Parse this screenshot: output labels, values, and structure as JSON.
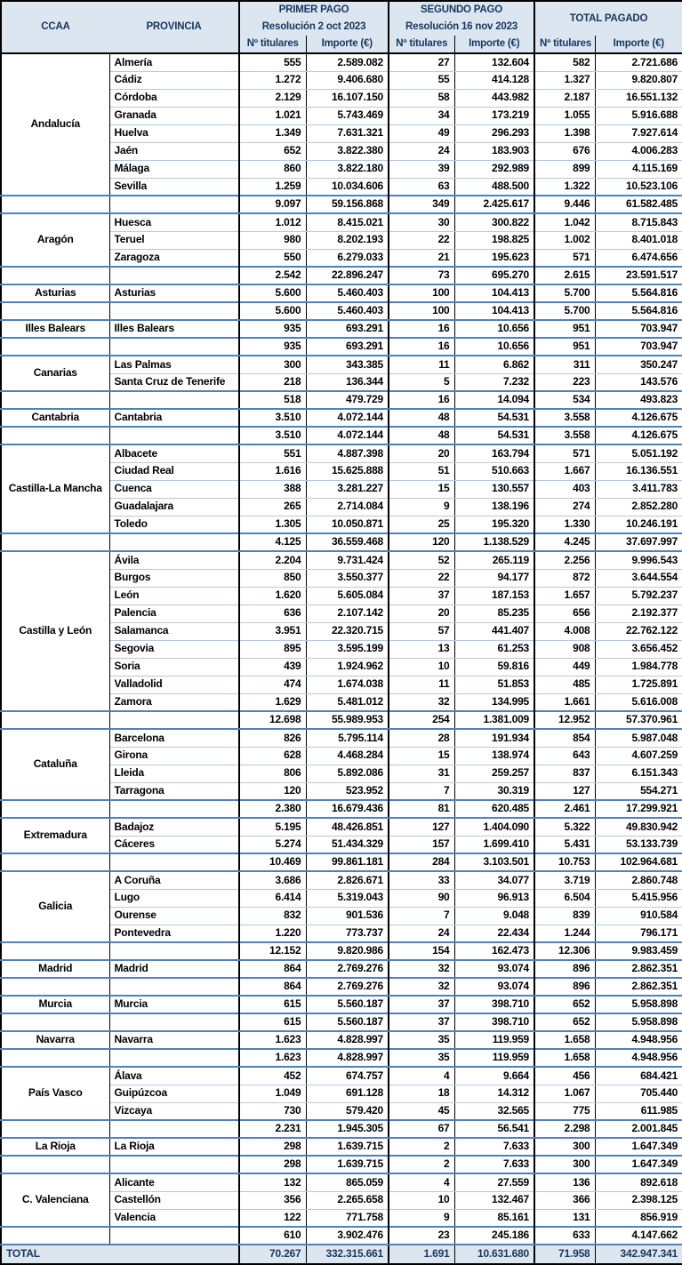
{
  "header": {
    "ccaa": "CCAA",
    "provincia": "PROVINCIA",
    "groups": [
      {
        "title": "PRIMER PAGO",
        "subtitle": "Resolución 2 oct 2023"
      },
      {
        "title": "SEGUNDO PAGO",
        "subtitle": "Resolución 16 nov 2023"
      },
      {
        "title": "TOTAL PAGADO",
        "subtitle": ""
      }
    ],
    "col_titulares": "Nº titulares",
    "col_importe": "Importe (€)"
  },
  "colors": {
    "header_bg": "#DCE6F1",
    "header_text": "#17375E",
    "group_line": "#4F81BD",
    "row_line": "#B4C9E2",
    "border": "#000000"
  },
  "regions": [
    {
      "ccaa": "Andalucía",
      "provinces": [
        {
          "name": "Almería",
          "values": [
            "555",
            "2.589.082",
            "27",
            "132.604",
            "582",
            "2.721.686"
          ]
        },
        {
          "name": "Cádiz",
          "values": [
            "1.272",
            "9.406.680",
            "55",
            "414.128",
            "1.327",
            "9.820.807"
          ]
        },
        {
          "name": "Córdoba",
          "values": [
            "2.129",
            "16.107.150",
            "58",
            "443.982",
            "2.187",
            "16.551.132"
          ]
        },
        {
          "name": "Granada",
          "values": [
            "1.021",
            "5.743.469",
            "34",
            "173.219",
            "1.055",
            "5.916.688"
          ]
        },
        {
          "name": "Huelva",
          "values": [
            "1.349",
            "7.631.321",
            "49",
            "296.293",
            "1.398",
            "7.927.614"
          ]
        },
        {
          "name": "Jaén",
          "values": [
            "652",
            "3.822.380",
            "24",
            "183.903",
            "676",
            "4.006.283"
          ]
        },
        {
          "name": "Málaga",
          "values": [
            "860",
            "3.822.180",
            "39",
            "292.989",
            "899",
            "4.115.169"
          ]
        },
        {
          "name": "Sevilla",
          "values": [
            "1.259",
            "10.034.606",
            "63",
            "488.500",
            "1.322",
            "10.523.106"
          ]
        }
      ],
      "subtotal": [
        "9.097",
        "59.156.868",
        "349",
        "2.425.617",
        "9.446",
        "61.582.485"
      ]
    },
    {
      "ccaa": "Aragón",
      "provinces": [
        {
          "name": "Huesca",
          "values": [
            "1.012",
            "8.415.021",
            "30",
            "300.822",
            "1.042",
            "8.715.843"
          ]
        },
        {
          "name": "Teruel",
          "values": [
            "980",
            "8.202.193",
            "22",
            "198.825",
            "1.002",
            "8.401.018"
          ]
        },
        {
          "name": "Zaragoza",
          "values": [
            "550",
            "6.279.033",
            "21",
            "195.623",
            "571",
            "6.474.656"
          ]
        }
      ],
      "subtotal": [
        "2.542",
        "22.896.247",
        "73",
        "695.270",
        "2.615",
        "23.591.517"
      ]
    },
    {
      "ccaa": "Asturias",
      "provinces": [
        {
          "name": "Asturias",
          "values": [
            "5.600",
            "5.460.403",
            "100",
            "104.413",
            "5.700",
            "5.564.816"
          ]
        }
      ],
      "subtotal": [
        "5.600",
        "5.460.403",
        "100",
        "104.413",
        "5.700",
        "5.564.816"
      ]
    },
    {
      "ccaa": "Illes Balears",
      "provinces": [
        {
          "name": "Illes Balears",
          "values": [
            "935",
            "693.291",
            "16",
            "10.656",
            "951",
            "703.947"
          ]
        }
      ],
      "subtotal": [
        "935",
        "693.291",
        "16",
        "10.656",
        "951",
        "703.947"
      ]
    },
    {
      "ccaa": "Canarias",
      "provinces": [
        {
          "name": "Las Palmas",
          "values": [
            "300",
            "343.385",
            "11",
            "6.862",
            "311",
            "350.247"
          ]
        },
        {
          "name": "Santa Cruz de Tenerife",
          "values": [
            "218",
            "136.344",
            "5",
            "7.232",
            "223",
            "143.576"
          ]
        }
      ],
      "subtotal": [
        "518",
        "479.729",
        "16",
        "14.094",
        "534",
        "493.823"
      ]
    },
    {
      "ccaa": "Cantabria",
      "provinces": [
        {
          "name": "Cantabria",
          "values": [
            "3.510",
            "4.072.144",
            "48",
            "54.531",
            "3.558",
            "4.126.675"
          ]
        }
      ],
      "subtotal": [
        "3.510",
        "4.072.144",
        "48",
        "54.531",
        "3.558",
        "4.126.675"
      ]
    },
    {
      "ccaa": "Castilla-La Mancha",
      "provinces": [
        {
          "name": "Albacete",
          "values": [
            "551",
            "4.887.398",
            "20",
            "163.794",
            "571",
            "5.051.192"
          ]
        },
        {
          "name": "Ciudad Real",
          "values": [
            "1.616",
            "15.625.888",
            "51",
            "510.663",
            "1.667",
            "16.136.551"
          ]
        },
        {
          "name": "Cuenca",
          "values": [
            "388",
            "3.281.227",
            "15",
            "130.557",
            "403",
            "3.411.783"
          ]
        },
        {
          "name": "Guadalajara",
          "values": [
            "265",
            "2.714.084",
            "9",
            "138.196",
            "274",
            "2.852.280"
          ]
        },
        {
          "name": "Toledo",
          "values": [
            "1.305",
            "10.050.871",
            "25",
            "195.320",
            "1.330",
            "10.246.191"
          ]
        }
      ],
      "subtotal": [
        "4.125",
        "36.559.468",
        "120",
        "1.138.529",
        "4.245",
        "37.697.997"
      ]
    },
    {
      "ccaa": "Castilla y León",
      "provinces": [
        {
          "name": "Ávila",
          "values": [
            "2.204",
            "9.731.424",
            "52",
            "265.119",
            "2.256",
            "9.996.543"
          ]
        },
        {
          "name": "Burgos",
          "values": [
            "850",
            "3.550.377",
            "22",
            "94.177",
            "872",
            "3.644.554"
          ]
        },
        {
          "name": "León",
          "values": [
            "1.620",
            "5.605.084",
            "37",
            "187.153",
            "1.657",
            "5.792.237"
          ]
        },
        {
          "name": "Palencia",
          "values": [
            "636",
            "2.107.142",
            "20",
            "85.235",
            "656",
            "2.192.377"
          ]
        },
        {
          "name": "Salamanca",
          "values": [
            "3.951",
            "22.320.715",
            "57",
            "441.407",
            "4.008",
            "22.762.122"
          ]
        },
        {
          "name": "Segovia",
          "values": [
            "895",
            "3.595.199",
            "13",
            "61.253",
            "908",
            "3.656.452"
          ]
        },
        {
          "name": "Soria",
          "values": [
            "439",
            "1.924.962",
            "10",
            "59.816",
            "449",
            "1.984.778"
          ]
        },
        {
          "name": "Valladolid",
          "values": [
            "474",
            "1.674.038",
            "11",
            "51.853",
            "485",
            "1.725.891"
          ]
        },
        {
          "name": "Zamora",
          "values": [
            "1.629",
            "5.481.012",
            "32",
            "134.995",
            "1.661",
            "5.616.008"
          ]
        }
      ],
      "subtotal": [
        "12.698",
        "55.989.953",
        "254",
        "1.381.009",
        "12.952",
        "57.370.961"
      ]
    },
    {
      "ccaa": "Cataluña",
      "provinces": [
        {
          "name": "Barcelona",
          "values": [
            "826",
            "5.795.114",
            "28",
            "191.934",
            "854",
            "5.987.048"
          ]
        },
        {
          "name": "Girona",
          "values": [
            "628",
            "4.468.284",
            "15",
            "138.974",
            "643",
            "4.607.259"
          ]
        },
        {
          "name": "Lleida",
          "values": [
            "806",
            "5.892.086",
            "31",
            "259.257",
            "837",
            "6.151.343"
          ]
        },
        {
          "name": "Tarragona",
          "values": [
            "120",
            "523.952",
            "7",
            "30.319",
            "127",
            "554.271"
          ]
        }
      ],
      "subtotal": [
        "2.380",
        "16.679.436",
        "81",
        "620.485",
        "2.461",
        "17.299.921"
      ]
    },
    {
      "ccaa": "Extremadura",
      "provinces": [
        {
          "name": "Badajoz",
          "values": [
            "5.195",
            "48.426.851",
            "127",
            "1.404.090",
            "5.322",
            "49.830.942"
          ]
        },
        {
          "name": "Cáceres",
          "values": [
            "5.274",
            "51.434.329",
            "157",
            "1.699.410",
            "5.431",
            "53.133.739"
          ]
        }
      ],
      "subtotal": [
        "10.469",
        "99.861.181",
        "284",
        "3.103.501",
        "10.753",
        "102.964.681"
      ]
    },
    {
      "ccaa": "Galicia",
      "provinces": [
        {
          "name": "A Coruña",
          "values": [
            "3.686",
            "2.826.671",
            "33",
            "34.077",
            "3.719",
            "2.860.748"
          ]
        },
        {
          "name": "Lugo",
          "values": [
            "6.414",
            "5.319.043",
            "90",
            "96.913",
            "6.504",
            "5.415.956"
          ]
        },
        {
          "name": "Ourense",
          "values": [
            "832",
            "901.536",
            "7",
            "9.048",
            "839",
            "910.584"
          ]
        },
        {
          "name": "Pontevedra",
          "values": [
            "1.220",
            "773.737",
            "24",
            "22.434",
            "1.244",
            "796.171"
          ]
        }
      ],
      "subtotal": [
        "12.152",
        "9.820.986",
        "154",
        "162.473",
        "12.306",
        "9.983.459"
      ]
    },
    {
      "ccaa": "Madrid",
      "provinces": [
        {
          "name": "Madrid",
          "values": [
            "864",
            "2.769.276",
            "32",
            "93.074",
            "896",
            "2.862.351"
          ]
        }
      ],
      "subtotal": [
        "864",
        "2.769.276",
        "32",
        "93.074",
        "896",
        "2.862.351"
      ]
    },
    {
      "ccaa": "Murcia",
      "provinces": [
        {
          "name": "Murcia",
          "values": [
            "615",
            "5.560.187",
            "37",
            "398.710",
            "652",
            "5.958.898"
          ]
        }
      ],
      "subtotal": [
        "615",
        "5.560.187",
        "37",
        "398.710",
        "652",
        "5.958.898"
      ]
    },
    {
      "ccaa": "Navarra",
      "provinces": [
        {
          "name": "Navarra",
          "values": [
            "1.623",
            "4.828.997",
            "35",
            "119.959",
            "1.658",
            "4.948.956"
          ]
        }
      ],
      "subtotal": [
        "1.623",
        "4.828.997",
        "35",
        "119.959",
        "1.658",
        "4.948.956"
      ]
    },
    {
      "ccaa": "País Vasco",
      "provinces": [
        {
          "name": "Álava",
          "values": [
            "452",
            "674.757",
            "4",
            "9.664",
            "456",
            "684.421"
          ]
        },
        {
          "name": "Guipúzcoa",
          "values": [
            "1.049",
            "691.128",
            "18",
            "14.312",
            "1.067",
            "705.440"
          ]
        },
        {
          "name": "Vizcaya",
          "values": [
            "730",
            "579.420",
            "45",
            "32.565",
            "775",
            "611.985"
          ]
        }
      ],
      "subtotal": [
        "2.231",
        "1.945.305",
        "67",
        "56.541",
        "2.298",
        "2.001.845"
      ]
    },
    {
      "ccaa": "La Rioja",
      "provinces": [
        {
          "name": "La Rioja",
          "values": [
            "298",
            "1.639.715",
            "2",
            "7.633",
            "300",
            "1.647.349"
          ]
        }
      ],
      "subtotal": [
        "298",
        "1.639.715",
        "2",
        "7.633",
        "300",
        "1.647.349"
      ]
    },
    {
      "ccaa": "C. Valenciana",
      "provinces": [
        {
          "name": "Alicante",
          "values": [
            "132",
            "865.059",
            "4",
            "27.559",
            "136",
            "892.618"
          ]
        },
        {
          "name": "Castellón",
          "values": [
            "356",
            "2.265.658",
            "10",
            "132.467",
            "366",
            "2.398.125"
          ]
        },
        {
          "name": "Valencia",
          "values": [
            "122",
            "771.758",
            "9",
            "85.161",
            "131",
            "856.919"
          ]
        }
      ],
      "subtotal": [
        "610",
        "3.902.476",
        "23",
        "245.186",
        "633",
        "4.147.662"
      ]
    }
  ],
  "total": {
    "label": "TOTAL",
    "values": [
      "70.267",
      "332.315.661",
      "1.691",
      "10.631.680",
      "71.958",
      "342.947.341"
    ]
  }
}
